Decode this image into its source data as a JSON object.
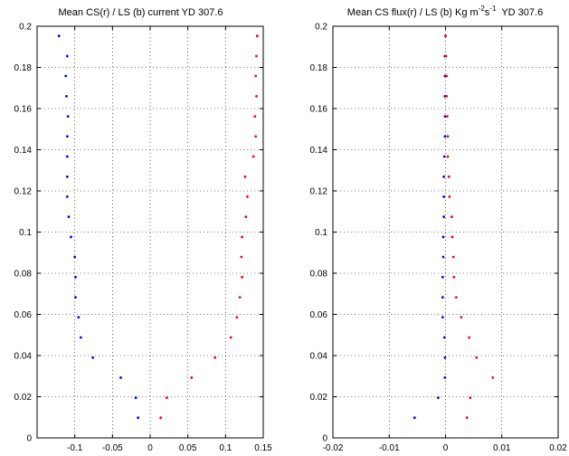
{
  "chart_data": [
    {
      "type": "scatter",
      "title": "Mean CS(r) / LS (b) current YD 307.6",
      "xlabel": "",
      "ylabel": "",
      "xlim": [
        -0.15,
        0.15
      ],
      "ylim": [
        0,
        0.2
      ],
      "xticks": [
        -0.1,
        -0.05,
        0,
        0.05,
        0.1,
        0.15
      ],
      "xtick_labels": [
        "-0.1",
        "-0.05",
        "0",
        "0.05",
        "0.1",
        "0.15"
      ],
      "yticks": [
        0,
        0.02,
        0.04,
        0.06,
        0.08,
        0.1,
        0.12,
        0.14,
        0.16,
        0.18,
        0.2
      ],
      "ytick_labels": [
        "0",
        "0.02",
        "0.04",
        "0.06",
        "0.08",
        "0.1",
        "0.12",
        "0.14",
        "0.16",
        "0.18",
        "0.2"
      ],
      "grid": true,
      "series": [
        {
          "color": "#0000ff",
          "points": [
            [
              -0.016,
              0.0098
            ],
            [
              -0.019,
              0.0195
            ],
            [
              -0.039,
              0.0293
            ],
            [
              -0.076,
              0.039
            ],
            [
              -0.092,
              0.0488
            ],
            [
              -0.095,
              0.0586
            ],
            [
              -0.099,
              0.0683
            ],
            [
              -0.099,
              0.0781
            ],
            [
              -0.1,
              0.0879
            ],
            [
              -0.105,
              0.0976
            ],
            [
              -0.108,
              0.1074
            ],
            [
              -0.11,
              0.1172
            ],
            [
              -0.11,
              0.1269
            ],
            [
              -0.11,
              0.1367
            ],
            [
              -0.11,
              0.1465
            ],
            [
              -0.109,
              0.1562
            ],
            [
              -0.111,
              0.166
            ],
            [
              -0.112,
              0.1758
            ],
            [
              -0.11,
              0.1855
            ],
            [
              -0.121,
              0.1953
            ]
          ]
        },
        {
          "color": "#ff0000",
          "points": [
            [
              0.014,
              0.0098
            ],
            [
              0.022,
              0.0195
            ],
            [
              0.055,
              0.0293
            ],
            [
              0.086,
              0.039
            ],
            [
              0.107,
              0.0488
            ],
            [
              0.115,
              0.0586
            ],
            [
              0.119,
              0.0683
            ],
            [
              0.122,
              0.0781
            ],
            [
              0.121,
              0.0879
            ],
            [
              0.122,
              0.0976
            ],
            [
              0.127,
              0.1074
            ],
            [
              0.129,
              0.1172
            ],
            [
              0.126,
              0.1269
            ],
            [
              0.137,
              0.1367
            ],
            [
              0.14,
              0.1465
            ],
            [
              0.139,
              0.1562
            ],
            [
              0.141,
              0.166
            ],
            [
              0.14,
              0.1758
            ],
            [
              0.141,
              0.1855
            ],
            [
              0.142,
              0.1953
            ]
          ]
        }
      ]
    },
    {
      "type": "scatter",
      "title_main": "Mean CS flux(r) / LS (b) Kg m",
      "title_sup1": "-2",
      "title_mid": "s",
      "title_sup2": "-1",
      "title_tail": "  YD 307.6",
      "xlabel": "",
      "ylabel": "",
      "xlim": [
        -0.02,
        0.02
      ],
      "ylim": [
        0,
        0.2
      ],
      "xticks": [
        -0.02,
        -0.01,
        0,
        0.01,
        0.02
      ],
      "xtick_labels": [
        "-0.02",
        "-0.01",
        "0",
        "0.01",
        "0.02"
      ],
      "yticks": [
        0,
        0.02,
        0.04,
        0.06,
        0.08,
        0.1,
        0.12,
        0.14,
        0.16,
        0.18,
        0.2
      ],
      "ytick_labels": [
        "0",
        "0.02",
        "0.04",
        "0.06",
        "0.08",
        "0.1",
        "0.12",
        "0.14",
        "0.16",
        "0.18",
        "0.2"
      ],
      "grid": true,
      "series": [
        {
          "color": "#0000ff",
          "points": [
            [
              -0.0055,
              0.0098
            ],
            [
              -0.0013,
              0.0195
            ],
            [
              -0.0001,
              0.0293
            ],
            [
              -0.0001,
              0.039
            ],
            [
              -0.0002,
              0.0488
            ],
            [
              -0.0005,
              0.0586
            ],
            [
              -0.0005,
              0.0683
            ],
            [
              -0.0005,
              0.0781
            ],
            [
              -0.0004,
              0.0879
            ],
            [
              -0.0004,
              0.0976
            ],
            [
              -0.0003,
              0.1074
            ],
            [
              -0.0003,
              0.1172
            ],
            [
              -0.0003,
              0.1269
            ],
            [
              -0.0002,
              0.1367
            ],
            [
              -0.0001,
              0.1465
            ],
            [
              -0.0001,
              0.1562
            ],
            [
              -0.0001,
              0.166
            ],
            [
              -0.0001,
              0.1758
            ],
            [
              -0.0001,
              0.1855
            ],
            [
              0.0,
              0.1953
            ]
          ]
        },
        {
          "color": "#ff0000",
          "points": [
            [
              0.0038,
              0.0098
            ],
            [
              0.0044,
              0.0195
            ],
            [
              0.0084,
              0.0293
            ],
            [
              0.0055,
              0.039
            ],
            [
              0.0042,
              0.0488
            ],
            [
              0.0028,
              0.0586
            ],
            [
              0.0019,
              0.0683
            ],
            [
              0.0015,
              0.0781
            ],
            [
              0.0014,
              0.0879
            ],
            [
              0.0012,
              0.0976
            ],
            [
              0.0011,
              0.1074
            ],
            [
              0.0007,
              0.1172
            ],
            [
              0.0006,
              0.1269
            ],
            [
              0.0004,
              0.1367
            ],
            [
              0.0004,
              0.1465
            ],
            [
              0.0003,
              0.1562
            ],
            [
              0.0002,
              0.166
            ],
            [
              0.0002,
              0.1758
            ],
            [
              0.0001,
              0.1855
            ],
            [
              0.0,
              0.1953
            ]
          ]
        }
      ]
    }
  ]
}
